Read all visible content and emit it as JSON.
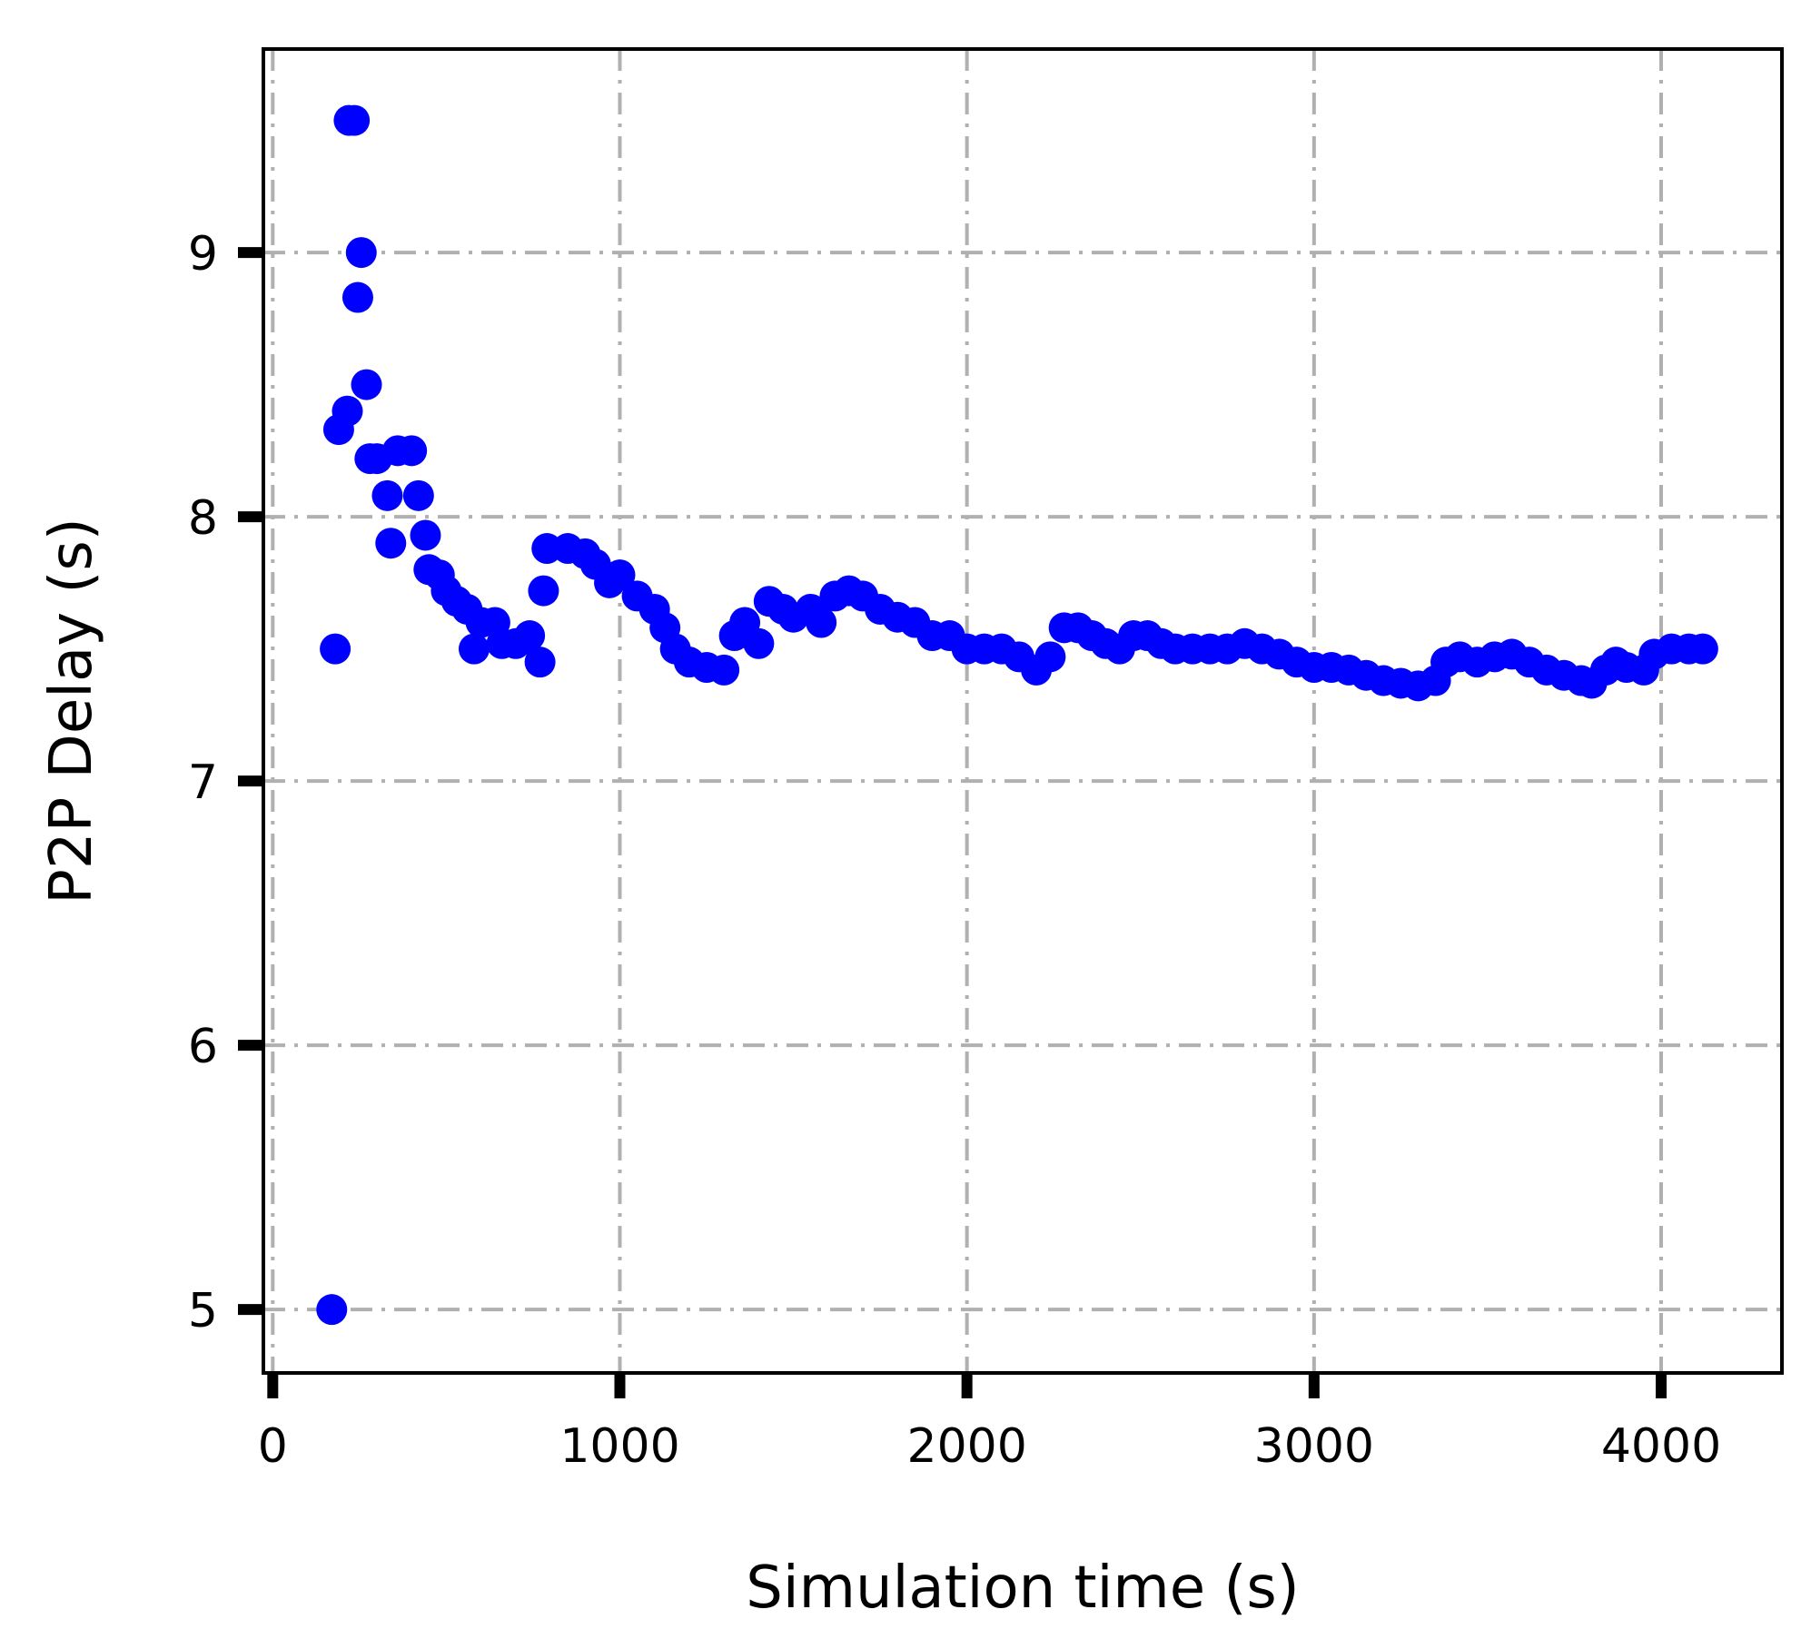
{
  "chart_data": {
    "type": "scatter",
    "xlabel": "Simulation time (s)",
    "ylabel": "P2P Delay (s)",
    "xlim": [
      -27,
      4348
    ],
    "ylim": [
      4.76,
      9.77
    ],
    "xticks": [
      0,
      1000,
      2000,
      3000,
      4000
    ],
    "yticks": [
      5,
      6,
      7,
      8,
      9
    ],
    "grid": true,
    "series": [
      {
        "color": "#0000ff",
        "x": [
          170,
          180,
          190,
          215,
          220,
          235,
          245,
          255,
          270,
          280,
          300,
          330,
          340,
          360,
          400,
          420,
          440,
          450,
          480,
          500,
          530,
          560,
          580,
          600,
          640,
          660,
          700,
          740,
          770,
          780,
          790,
          850,
          900,
          930,
          970,
          1000,
          1050,
          1100,
          1130,
          1160,
          1200,
          1250,
          1300,
          1330,
          1360,
          1400,
          1430,
          1470,
          1500,
          1550,
          1580,
          1620,
          1660,
          1700,
          1750,
          1800,
          1850,
          1900,
          1950,
          2000,
          2050,
          2100,
          2150,
          2200,
          2240,
          2280,
          2320,
          2360,
          2400,
          2440,
          2480,
          2520,
          2560,
          2600,
          2650,
          2700,
          2750,
          2800,
          2850,
          2900,
          2950,
          3000,
          3050,
          3100,
          3150,
          3200,
          3250,
          3300,
          3350,
          3380,
          3420,
          3470,
          3520,
          3570,
          3620,
          3670,
          3720,
          3770,
          3800,
          3840,
          3870,
          3900,
          3950,
          3980,
          4030,
          4080,
          4120
        ],
        "values": [
          5.0,
          7.5,
          8.33,
          8.4,
          9.5,
          9.5,
          8.83,
          9.0,
          8.5,
          8.22,
          8.22,
          8.08,
          7.9,
          8.25,
          8.25,
          8.08,
          7.93,
          7.8,
          7.78,
          7.72,
          7.68,
          7.65,
          7.5,
          7.6,
          7.6,
          7.52,
          7.52,
          7.55,
          7.45,
          7.72,
          7.88,
          7.88,
          7.86,
          7.82,
          7.75,
          7.78,
          7.7,
          7.65,
          7.58,
          7.5,
          7.45,
          7.43,
          7.42,
          7.55,
          7.6,
          7.52,
          7.68,
          7.65,
          7.62,
          7.65,
          7.6,
          7.7,
          7.72,
          7.7,
          7.65,
          7.62,
          7.6,
          7.55,
          7.55,
          7.5,
          7.5,
          7.5,
          7.47,
          7.42,
          7.47,
          7.58,
          7.58,
          7.55,
          7.52,
          7.5,
          7.55,
          7.55,
          7.52,
          7.5,
          7.5,
          7.5,
          7.5,
          7.52,
          7.5,
          7.48,
          7.45,
          7.43,
          7.43,
          7.42,
          7.4,
          7.38,
          7.37,
          7.36,
          7.38,
          7.45,
          7.47,
          7.45,
          7.47,
          7.48,
          7.45,
          7.42,
          7.4,
          7.38,
          7.37,
          7.42,
          7.45,
          7.43,
          7.42,
          7.48,
          7.5,
          7.5,
          7.5
        ]
      }
    ]
  }
}
